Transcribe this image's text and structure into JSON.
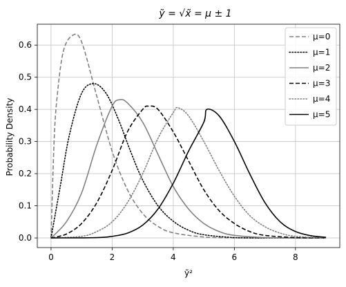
{
  "chart_data": {
    "type": "line",
    "title": "ỹ = √x̃ = μ ± 1",
    "xlabel": "ỹ²",
    "ylabel": "Probability Density",
    "xlim": [
      -0.45,
      9.45
    ],
    "ylim": [
      -0.03,
      0.665
    ],
    "x_ticks": [
      0,
      2,
      4,
      6,
      8
    ],
    "y_ticks": [
      0.0,
      0.1,
      0.2,
      0.3,
      0.4,
      0.5,
      0.6
    ],
    "grid": true,
    "legend_position": "top-right",
    "series": [
      {
        "name": "μ=0",
        "style": "dashed",
        "color": "#808080",
        "x": [
          0,
          0.1,
          0.2,
          0.4,
          0.7,
          1.0,
          1.5,
          2.0,
          2.5,
          3.0,
          3.5,
          4.0,
          5.0,
          6.0,
          7.0,
          8.0,
          9.0
        ],
        "y": [
          0,
          0.3,
          0.44,
          0.58,
          0.63,
          0.61,
          0.44,
          0.27,
          0.15,
          0.076,
          0.036,
          0.016,
          0.003,
          0.0003,
          0,
          0,
          0
        ]
      },
      {
        "name": "μ=1",
        "style": "dotted",
        "color": "#000000",
        "x": [
          0,
          0.3,
          0.6,
          1.0,
          1.4,
          1.8,
          2.2,
          2.6,
          3.0,
          3.5,
          4.0,
          4.5,
          5.0,
          6.0,
          7.0,
          8.0,
          9.0
        ],
        "y": [
          0,
          0.16,
          0.32,
          0.45,
          0.48,
          0.45,
          0.37,
          0.27,
          0.18,
          0.1,
          0.052,
          0.024,
          0.01,
          0.001,
          0,
          0,
          0
        ]
      },
      {
        "name": "μ=2",
        "style": "solid",
        "color": "#808080",
        "x": [
          0,
          0.5,
          1.0,
          1.5,
          2.0,
          2.25,
          2.5,
          3.0,
          3.5,
          4.0,
          4.5,
          5.0,
          5.5,
          6.0,
          7.0,
          8.0,
          9.0
        ],
        "y": [
          0,
          0.05,
          0.14,
          0.29,
          0.41,
          0.43,
          0.42,
          0.36,
          0.26,
          0.16,
          0.09,
          0.045,
          0.02,
          0.008,
          0.001,
          0,
          0
        ]
      },
      {
        "name": "μ=3",
        "style": "dashed",
        "color": "#000000",
        "x": [
          0,
          0.5,
          1.0,
          1.5,
          2.0,
          2.5,
          3.0,
          3.2,
          3.5,
          4.0,
          4.5,
          5.0,
          5.5,
          6.0,
          6.5,
          7.0,
          8.0,
          9.0
        ],
        "y": [
          0,
          0.012,
          0.045,
          0.11,
          0.21,
          0.33,
          0.4,
          0.41,
          0.4,
          0.33,
          0.24,
          0.15,
          0.085,
          0.045,
          0.02,
          0.008,
          0.001,
          0
        ]
      },
      {
        "name": "μ=4",
        "style": "dotted",
        "color": "#808080",
        "x": [
          0,
          1.0,
          1.5,
          2.0,
          2.5,
          3.0,
          3.5,
          4.0,
          4.15,
          4.5,
          5.0,
          5.5,
          6.0,
          6.5,
          7.0,
          7.5,
          8.0,
          9.0
        ],
        "y": [
          0,
          0.005,
          0.02,
          0.05,
          0.11,
          0.2,
          0.31,
          0.39,
          0.405,
          0.38,
          0.3,
          0.21,
          0.13,
          0.07,
          0.035,
          0.015,
          0.005,
          0
        ]
      },
      {
        "name": "μ=5",
        "style": "solid",
        "color": "#000000",
        "x": [
          0,
          1.5,
          2.0,
          2.5,
          3.0,
          3.5,
          4.0,
          4.5,
          5.0,
          5.1,
          5.5,
          6.0,
          6.5,
          7.0,
          7.5,
          8.0,
          8.5,
          9.0
        ],
        "y": [
          0,
          0.001,
          0.005,
          0.015,
          0.04,
          0.09,
          0.17,
          0.27,
          0.36,
          0.4,
          0.38,
          0.3,
          0.2,
          0.11,
          0.05,
          0.02,
          0.007,
          0.002
        ]
      }
    ]
  }
}
